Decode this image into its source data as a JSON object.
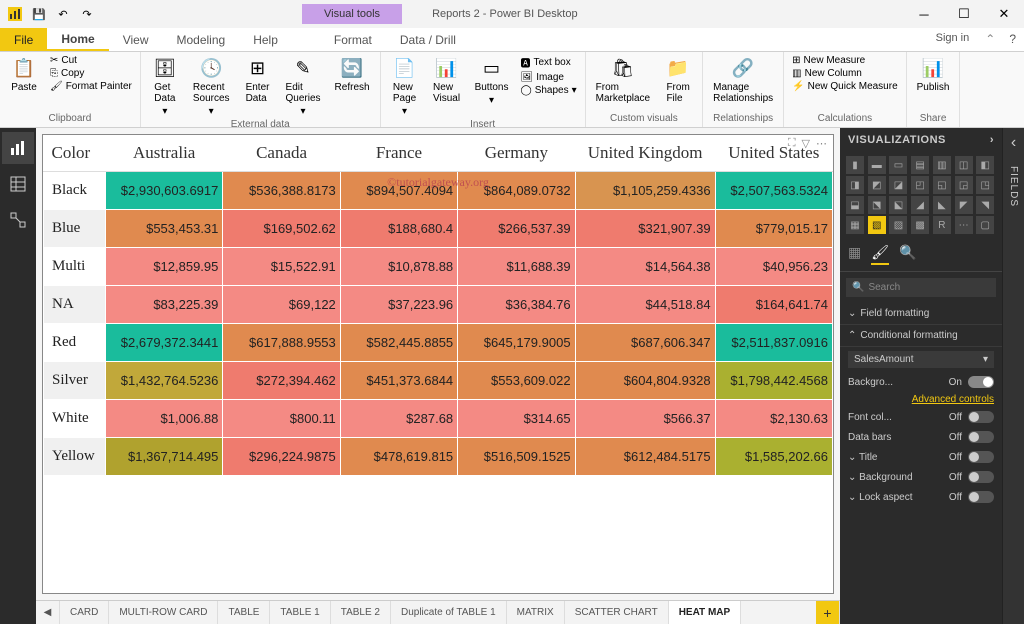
{
  "app": {
    "title": "Reports 2 - Power BI Desktop",
    "visual_tools": "Visual tools",
    "signin": "Sign in"
  },
  "menu": {
    "file": "File",
    "home": "Home",
    "view": "View",
    "modeling": "Modeling",
    "help": "Help",
    "format": "Format",
    "datadrill": "Data / Drill"
  },
  "ribbon": {
    "clipboard": {
      "label": "Clipboard",
      "paste": "Paste",
      "cut": "Cut",
      "copy": "Copy",
      "painter": "Format Painter"
    },
    "external": {
      "label": "External data",
      "getdata": "Get\nData",
      "recent": "Recent\nSources",
      "enter": "Enter\nData",
      "edit": "Edit\nQueries",
      "refresh": "Refresh"
    },
    "insert": {
      "label": "Insert",
      "newpage": "New\nPage",
      "newvisual": "New\nVisual",
      "buttons": "Buttons",
      "textbox": "Text box",
      "image": "Image",
      "shapes": "Shapes"
    },
    "custom": {
      "label": "Custom visuals",
      "marketplace": "From\nMarketplace",
      "file": "From\nFile"
    },
    "rel": {
      "label": "Relationships",
      "manage": "Manage\nRelationships"
    },
    "calc": {
      "label": "Calculations",
      "measure": "New Measure",
      "column": "New Column",
      "quick": "New Quick Measure"
    },
    "share": {
      "label": "Share",
      "publish": "Publish"
    }
  },
  "watermark": "©tutorialgateway.org",
  "table": {
    "corner": "Color",
    "columns": [
      "Australia",
      "Canada",
      "France",
      "Germany",
      "United Kingdom",
      "United States"
    ],
    "rows": [
      {
        "hdr": "Black",
        "cells": [
          {
            "v": "$2,930,603.6917",
            "c": "#1abc9c"
          },
          {
            "v": "$536,388.8173",
            "c": "#e08a4f"
          },
          {
            "v": "$894,507.4094",
            "c": "#e08a4f"
          },
          {
            "v": "$864,089.0732",
            "c": "#e08a4f"
          },
          {
            "v": "$1,105,259.4336",
            "c": "#d89450"
          },
          {
            "v": "$2,507,563.5324",
            "c": "#1abc9c"
          }
        ]
      },
      {
        "hdr": "Blue",
        "cells": [
          {
            "v": "$553,453.31",
            "c": "#e08a4f"
          },
          {
            "v": "$169,502.62",
            "c": "#ef7b6e"
          },
          {
            "v": "$188,680.4",
            "c": "#ef7b6e"
          },
          {
            "v": "$266,537.39",
            "c": "#ef7b6e"
          },
          {
            "v": "$321,907.39",
            "c": "#ef7b6e"
          },
          {
            "v": "$779,015.17",
            "c": "#e08a4f"
          }
        ]
      },
      {
        "hdr": "Multi",
        "cells": [
          {
            "v": "$12,859.95",
            "c": "#f48a84"
          },
          {
            "v": "$15,522.91",
            "c": "#f48a84"
          },
          {
            "v": "$10,878.88",
            "c": "#f48a84"
          },
          {
            "v": "$11,688.39",
            "c": "#f48a84"
          },
          {
            "v": "$14,564.38",
            "c": "#f48a84"
          },
          {
            "v": "$40,956.23",
            "c": "#f48a84"
          }
        ]
      },
      {
        "hdr": "NA",
        "cells": [
          {
            "v": "$83,225.39",
            "c": "#f48a84"
          },
          {
            "v": "$69,122",
            "c": "#f48a84"
          },
          {
            "v": "$37,223.96",
            "c": "#f48a84"
          },
          {
            "v": "$36,384.76",
            "c": "#f48a84"
          },
          {
            "v": "$44,518.84",
            "c": "#f48a84"
          },
          {
            "v": "$164,641.74",
            "c": "#ef7b6e"
          }
        ]
      },
      {
        "hdr": "Red",
        "cells": [
          {
            "v": "$2,679,372.3441",
            "c": "#1abc9c"
          },
          {
            "v": "$617,888.9553",
            "c": "#e08a4f"
          },
          {
            "v": "$582,445.8855",
            "c": "#e08a4f"
          },
          {
            "v": "$645,179.9005",
            "c": "#e08a4f"
          },
          {
            "v": "$687,606.347",
            "c": "#e08a4f"
          },
          {
            "v": "$2,511,837.0916",
            "c": "#1abc9c"
          }
        ]
      },
      {
        "hdr": "Silver",
        "cells": [
          {
            "v": "$1,432,764.5236",
            "c": "#c1a83a"
          },
          {
            "v": "$272,394.462",
            "c": "#ef7b6e"
          },
          {
            "v": "$451,373.6844",
            "c": "#e08a4f"
          },
          {
            "v": "$553,609.022",
            "c": "#e08a4f"
          },
          {
            "v": "$604,804.9328",
            "c": "#e08a4f"
          },
          {
            "v": "$1,798,442.4568",
            "c": "#aab030"
          }
        ]
      },
      {
        "hdr": "White",
        "cells": [
          {
            "v": "$1,006.88",
            "c": "#f48a84"
          },
          {
            "v": "$800.11",
            "c": "#f48a84"
          },
          {
            "v": "$287.68",
            "c": "#f48a84"
          },
          {
            "v": "$314.65",
            "c": "#f48a84"
          },
          {
            "v": "$566.37",
            "c": "#f48a84"
          },
          {
            "v": "$2,130.63",
            "c": "#f48a84"
          }
        ]
      },
      {
        "hdr": "Yellow",
        "cells": [
          {
            "v": "$1,367,714.495",
            "c": "#b0a22e"
          },
          {
            "v": "$296,224.9875",
            "c": "#ef7b6e"
          },
          {
            "v": "$478,619.815",
            "c": "#e08a4f"
          },
          {
            "v": "$516,509.1525",
            "c": "#e08a4f"
          },
          {
            "v": "$612,484.5175",
            "c": "#e08a4f"
          },
          {
            "v": "$1,585,202.66",
            "c": "#aab030"
          }
        ]
      }
    ]
  },
  "tabs": [
    "CARD",
    "MULTI-ROW CARD",
    "TABLE",
    "TABLE 1",
    "TABLE 2",
    "Duplicate of TABLE 1",
    "MATRIX",
    "SCATTER CHART",
    "HEAT MAP"
  ],
  "active_tab": "HEAT MAP",
  "viz": {
    "title": "VISUALIZATIONS",
    "fields_label": "FIELDS",
    "search": "Search",
    "field_formatting": "Field formatting",
    "cond_formatting": "Conditional formatting",
    "dropdown": "SalesAmount",
    "rows": [
      {
        "l": "Backgro...",
        "v": "On",
        "on": true
      },
      {
        "adv": "Advanced controls"
      },
      {
        "l": "Font col...",
        "v": "Off",
        "on": false
      },
      {
        "l": "Data bars",
        "v": "Off",
        "on": false
      },
      {
        "l": "Title",
        "v": "Off",
        "on": false,
        "chev": true
      },
      {
        "l": "Background",
        "v": "Off",
        "on": false,
        "chev": true
      },
      {
        "l": "Lock aspect",
        "v": "Off",
        "on": false,
        "chev": true
      }
    ]
  }
}
